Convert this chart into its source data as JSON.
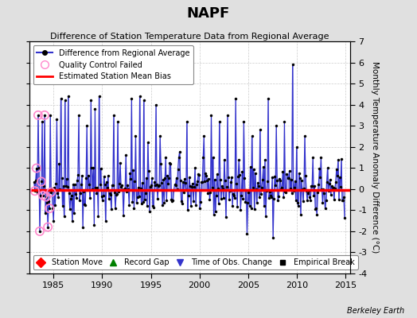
{
  "title": "NAPF",
  "subtitle": "Difference of Station Temperature Data from Regional Average",
  "ylabel": "Monthly Temperature Anomaly Difference (°C)",
  "xlabel_years": [
    1985,
    1990,
    1995,
    2000,
    2005,
    2010,
    2015
  ],
  "xlim": [
    1982.5,
    2015.5
  ],
  "ylim": [
    -4,
    7
  ],
  "yticks": [
    -4,
    -3,
    -2,
    -1,
    0,
    1,
    2,
    3,
    4,
    5,
    6,
    7
  ],
  "bias_level": -0.05,
  "background_color": "#e0e0e0",
  "plot_bg_color": "#ffffff",
  "line_color": "#3333cc",
  "line_fill_color": "#aaaaee",
  "bias_color": "#ff0000",
  "qc_color": "#ff88cc",
  "watermark": "Berkeley Earth",
  "seed": 42
}
